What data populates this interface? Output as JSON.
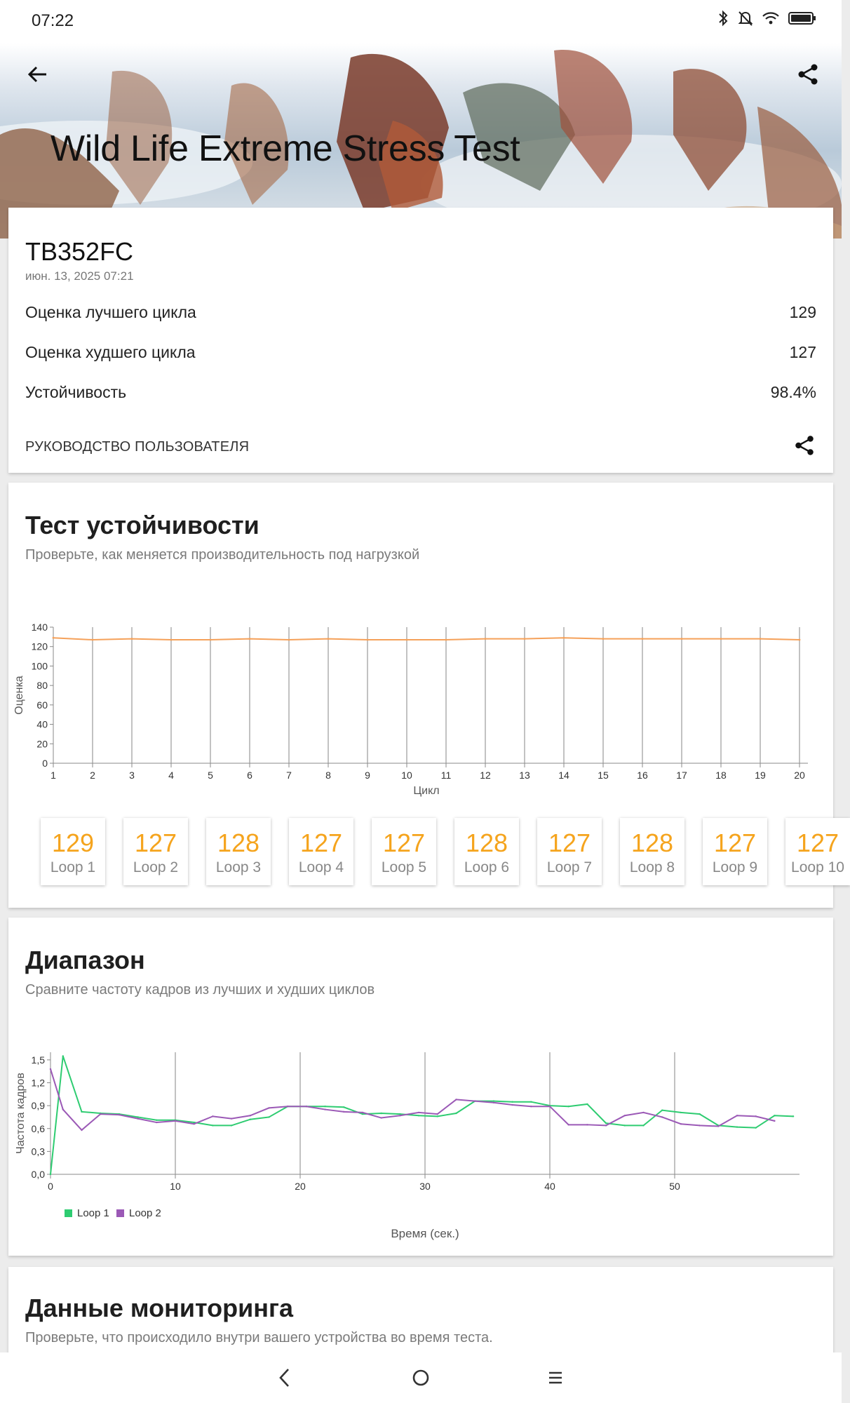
{
  "status_bar": {
    "time": "07:22",
    "icons": [
      "bluetooth-icon",
      "bell-off-icon",
      "wifi-icon",
      "battery-icon"
    ]
  },
  "header": {
    "title": "Wild Life Extreme Stress Test",
    "back_icon": "arrow-left-icon",
    "share_icon": "share-icon"
  },
  "summary": {
    "device": "TB352FC",
    "date": "июн. 13, 2025 07:21",
    "best_loop_label": "Оценка лучшего цикла",
    "best_loop_value": "129",
    "worst_loop_label": "Оценка худшего цикла",
    "worst_loop_value": "127",
    "stability_label": "Устойчивость",
    "stability_value": "98.4%",
    "guide_label": "РУКОВОДСТВО ПОЛЬЗОВАТЕЛЯ"
  },
  "stability": {
    "title": "Тест устойчивости",
    "subtitle": "Проверьте, как меняется производительность под нагрузкой",
    "loops": [
      {
        "score": "129",
        "label": "Loop 1"
      },
      {
        "score": "127",
        "label": "Loop 2"
      },
      {
        "score": "128",
        "label": "Loop 3"
      },
      {
        "score": "127",
        "label": "Loop 4"
      },
      {
        "score": "127",
        "label": "Loop 5"
      },
      {
        "score": "128",
        "label": "Loop 6"
      },
      {
        "score": "127",
        "label": "Loop 7"
      },
      {
        "score": "128",
        "label": "Loop 8"
      },
      {
        "score": "127",
        "label": "Loop 9"
      },
      {
        "score": "127",
        "label": "Loop 10"
      }
    ]
  },
  "range": {
    "title": "Диапазон",
    "subtitle": "Сравните частоту кадров из лучших и худших циклов"
  },
  "monitoring": {
    "title": "Данные мониторинга",
    "subtitle": "Проверьте, что происходило внутри вашего устройства во время теста."
  },
  "navigation": {
    "back_icon": "chevron-left-icon",
    "home_icon": "circle-home-icon",
    "menu_icon": "menu-lines-icon"
  },
  "chart_data": [
    {
      "type": "line",
      "xlabel": "Цикл",
      "ylabel": "Оценка",
      "x": [
        1,
        2,
        3,
        4,
        5,
        6,
        7,
        8,
        9,
        10,
        11,
        12,
        13,
        14,
        15,
        16,
        17,
        18,
        19,
        20
      ],
      "y_ticks": [
        "0",
        "20",
        "40",
        "60",
        "80",
        "100",
        "120",
        "140"
      ],
      "x_ticks": [
        "1",
        "2",
        "3",
        "4",
        "5",
        "6",
        "7",
        "8",
        "9",
        "10",
        "11",
        "12",
        "13",
        "14",
        "15",
        "16",
        "17",
        "18",
        "19",
        "20"
      ],
      "ylim": [
        0,
        140
      ],
      "series": [
        {
          "values": [
            129,
            127,
            128,
            127,
            127,
            128,
            127,
            128,
            127,
            127,
            127,
            128,
            128,
            129,
            128,
            128,
            128,
            128,
            128,
            127
          ],
          "color": "#f5a15a"
        }
      ],
      "grid": "vertical"
    },
    {
      "type": "line",
      "xlabel": "Время (сек.)",
      "ylabel": "Частота кадров",
      "x_ticks": [
        "0",
        "10",
        "20",
        "30",
        "40",
        "50"
      ],
      "y_ticks": [
        "0,0",
        "0,3",
        "0,6",
        "0,9",
        "1,2",
        "1,5"
      ],
      "xlim": [
        0,
        60
      ],
      "ylim": [
        0,
        1.6
      ],
      "legend": "bottom-left",
      "series": [
        {
          "name": "Loop 1",
          "color": "#2ecc71",
          "x": [
            0,
            1,
            2.5,
            4,
            5.5,
            7,
            8.5,
            10,
            11.5,
            13,
            14.5,
            16,
            17.5,
            19,
            20.5,
            22,
            23.5,
            25,
            26.5,
            28,
            29.5,
            31,
            32.5,
            34,
            35.5,
            37,
            38.5,
            40,
            41.5,
            43,
            44.5,
            46,
            47.5,
            49,
            50.5,
            52,
            53.5,
            55,
            56.5,
            58,
            59.5
          ],
          "values": [
            0.0,
            1.55,
            0.82,
            0.8,
            0.79,
            0.75,
            0.71,
            0.71,
            0.68,
            0.64,
            0.64,
            0.72,
            0.75,
            0.89,
            0.89,
            0.89,
            0.88,
            0.79,
            0.8,
            0.79,
            0.77,
            0.76,
            0.8,
            0.96,
            0.96,
            0.95,
            0.95,
            0.9,
            0.89,
            0.92,
            0.67,
            0.64,
            0.64,
            0.84,
            0.81,
            0.79,
            0.64,
            0.62,
            0.61,
            0.77,
            0.76
          ]
        },
        {
          "name": "Loop 2",
          "color": "#9b59b6",
          "x": [
            0,
            1,
            2.5,
            4,
            5.5,
            7,
            8.5,
            10,
            11.5,
            13,
            14.5,
            16,
            17.5,
            19,
            20.5,
            22,
            23.5,
            25,
            26.5,
            28,
            29.5,
            31,
            32.5,
            34,
            35.5,
            37,
            38.5,
            40,
            41.5,
            43,
            44.5,
            46,
            47.5,
            49,
            50.5,
            52,
            53.5,
            55,
            56.5,
            58
          ],
          "values": [
            1.38,
            0.85,
            0.58,
            0.79,
            0.78,
            0.73,
            0.68,
            0.7,
            0.66,
            0.76,
            0.73,
            0.77,
            0.87,
            0.89,
            0.89,
            0.85,
            0.82,
            0.81,
            0.74,
            0.77,
            0.81,
            0.79,
            0.98,
            0.96,
            0.94,
            0.91,
            0.89,
            0.89,
            0.65,
            0.65,
            0.64,
            0.77,
            0.81,
            0.75,
            0.66,
            0.64,
            0.63,
            0.77,
            0.76,
            0.7
          ]
        }
      ],
      "grid": "vertical"
    }
  ]
}
